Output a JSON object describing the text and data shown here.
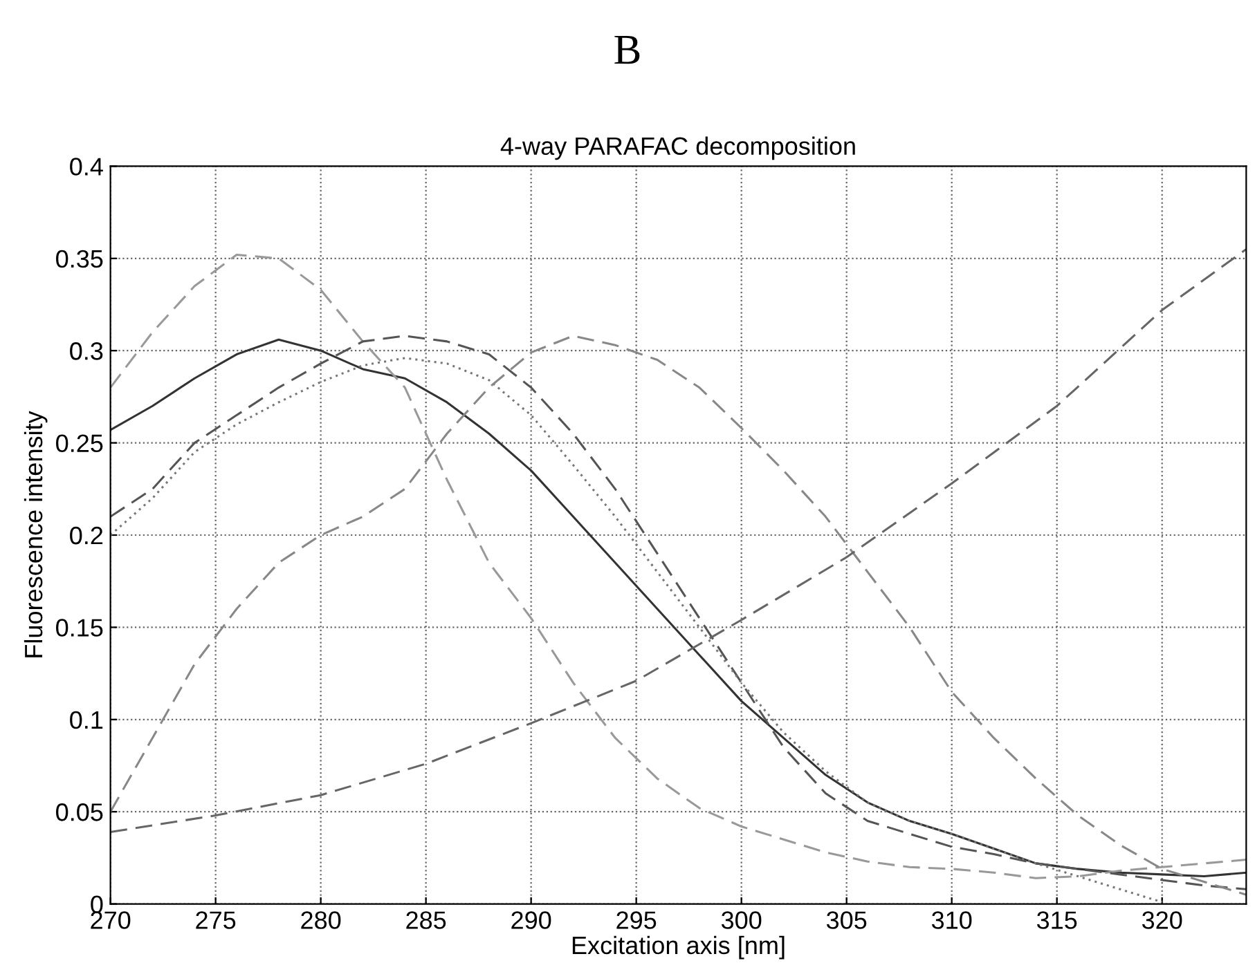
{
  "chart_data": {
    "type": "line",
    "title": "4-way PARAFAC decomposition",
    "xlabel": "Excitation axis [nm]",
    "ylabel": "Fluorescence intensity",
    "annotations": [
      "B"
    ],
    "xlim": [
      270,
      324
    ],
    "xticks": [
      270,
      275,
      280,
      285,
      290,
      295,
      300,
      305,
      310,
      315,
      320
    ],
    "ylim": [
      0,
      0.4
    ],
    "yticks": [
      0,
      0.05,
      0.1,
      0.15,
      0.2,
      0.25,
      0.3,
      0.35,
      0.4
    ],
    "grid": true,
    "marker": "none",
    "series": [
      {
        "color": "#333333",
        "line_style": "solid",
        "x": [
          270,
          272,
          274,
          276,
          278,
          280,
          282,
          284,
          286,
          288,
          290,
          292,
          294,
          296,
          298,
          300,
          302,
          304,
          306,
          308,
          310,
          312,
          314,
          316,
          318,
          320,
          322,
          324
        ],
        "values": [
          0.257,
          0.27,
          0.285,
          0.298,
          0.306,
          0.3,
          0.29,
          0.285,
          0.272,
          0.255,
          0.235,
          0.21,
          0.185,
          0.16,
          0.135,
          0.11,
          0.09,
          0.07,
          0.055,
          0.045,
          0.038,
          0.03,
          0.022,
          0.019,
          0.017,
          0.016,
          0.015,
          0.017
        ]
      },
      {
        "color": "#999999",
        "line_style": "dashed",
        "x": [
          270,
          272,
          274,
          276,
          278,
          280,
          282,
          284,
          286,
          288,
          290,
          292,
          294,
          296,
          298,
          300,
          302,
          304,
          306,
          308,
          310,
          312,
          314,
          316,
          318,
          320,
          322,
          324
        ],
        "values": [
          0.28,
          0.31,
          0.335,
          0.352,
          0.35,
          0.333,
          0.305,
          0.28,
          0.23,
          0.185,
          0.155,
          0.12,
          0.09,
          0.068,
          0.052,
          0.042,
          0.035,
          0.028,
          0.023,
          0.02,
          0.019,
          0.017,
          0.014,
          0.015,
          0.018,
          0.02,
          0.022,
          0.024
        ]
      },
      {
        "color": "#555555",
        "line_style": "dashed",
        "x": [
          270,
          272,
          274,
          276,
          278,
          280,
          282,
          284,
          286,
          288,
          290,
          292,
          294,
          296,
          298,
          300,
          302,
          304,
          306,
          308,
          310,
          312,
          314,
          316,
          318,
          320,
          322,
          324
        ],
        "values": [
          0.21,
          0.225,
          0.25,
          0.265,
          0.28,
          0.293,
          0.305,
          0.308,
          0.305,
          0.298,
          0.28,
          0.255,
          0.225,
          0.19,
          0.155,
          0.12,
          0.085,
          0.06,
          0.045,
          0.038,
          0.031,
          0.027,
          0.022,
          0.019,
          0.016,
          0.013,
          0.01,
          0.008
        ]
      },
      {
        "color": "#777777",
        "line_style": "dotted",
        "x": [
          270,
          272,
          274,
          276,
          278,
          280,
          282,
          284,
          286,
          288,
          290,
          292,
          294,
          296,
          298,
          300,
          302,
          304,
          306,
          308,
          310,
          312,
          314,
          316,
          318,
          320
        ],
        "values": [
          0.2,
          0.22,
          0.245,
          0.26,
          0.272,
          0.283,
          0.292,
          0.296,
          0.293,
          0.284,
          0.265,
          0.238,
          0.21,
          0.18,
          0.15,
          0.12,
          0.093,
          0.072,
          0.055,
          0.045,
          0.038,
          0.03,
          0.022,
          0.015,
          0.008,
          0.001
        ]
      },
      {
        "color": "#888888",
        "line_style": "dashed",
        "x": [
          270,
          272,
          274,
          276,
          278,
          280,
          282,
          284,
          286,
          288,
          290,
          292,
          294,
          296,
          298,
          300,
          302,
          304,
          306,
          308,
          310,
          312,
          314,
          316,
          318,
          320,
          322,
          324
        ],
        "values": [
          0.05,
          0.09,
          0.13,
          0.16,
          0.185,
          0.2,
          0.21,
          0.225,
          0.255,
          0.28,
          0.299,
          0.308,
          0.303,
          0.295,
          0.28,
          0.258,
          0.235,
          0.21,
          0.18,
          0.15,
          0.115,
          0.09,
          0.068,
          0.048,
          0.032,
          0.019,
          0.012,
          0.005
        ]
      },
      {
        "color": "#666666",
        "line_style": "dashed",
        "x": [
          270,
          275,
          280,
          285,
          290,
          295,
          300,
          305,
          310,
          315,
          320,
          324
        ],
        "values": [
          0.039,
          0.048,
          0.059,
          0.076,
          0.098,
          0.121,
          0.154,
          0.188,
          0.228,
          0.27,
          0.322,
          0.355
        ]
      }
    ]
  }
}
